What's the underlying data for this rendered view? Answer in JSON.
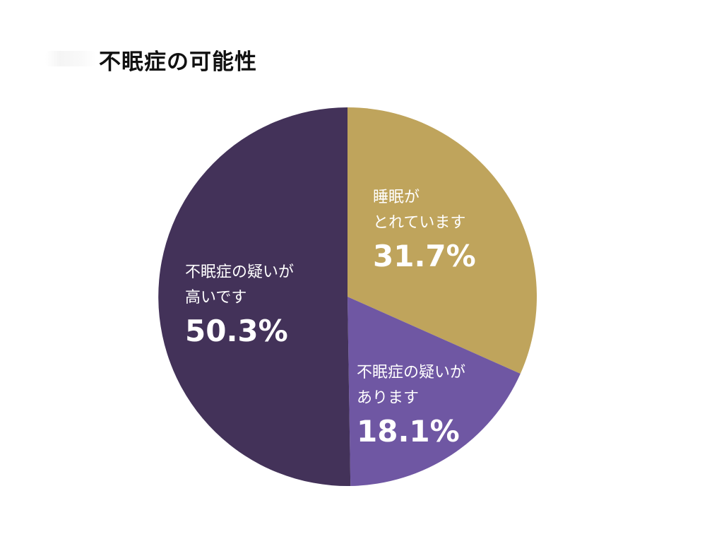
{
  "chart_data": {
    "type": "pie",
    "title": "不眠症の可能性",
    "slices": [
      {
        "lines": [
          "睡眠が",
          "とれています"
        ],
        "value": 31.7,
        "value_label": "31.7%",
        "color": "#BFA45C"
      },
      {
        "lines": [
          "不眠症の疑いが",
          "あります"
        ],
        "value": 18.1,
        "value_label": "18.1%",
        "color": "#6F57A3"
      },
      {
        "lines": [
          "不眠症の疑いが",
          "高いです"
        ],
        "value": 50.3,
        "value_label": "50.3%",
        "color": "#433259"
      }
    ],
    "start_angle": "12 o'clock",
    "direction": "clockwise",
    "legend": "none"
  }
}
